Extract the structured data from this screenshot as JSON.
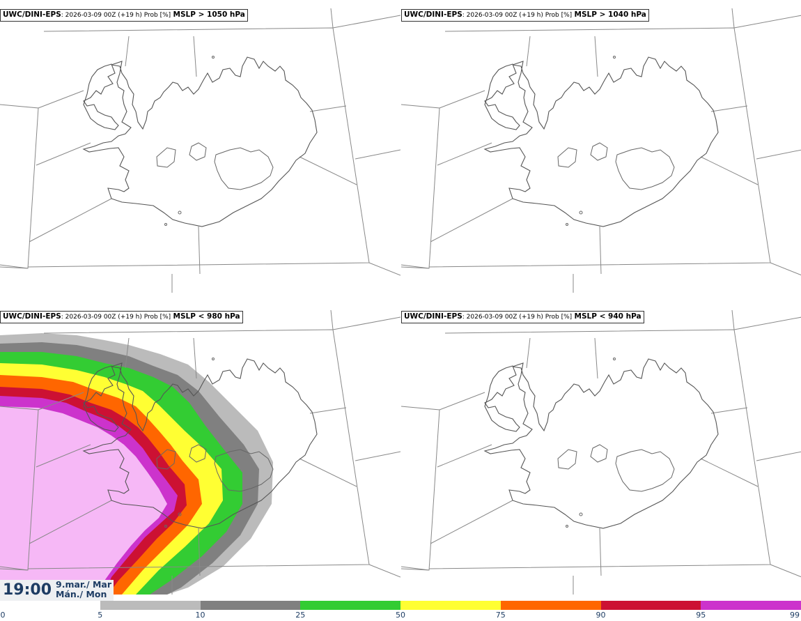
{
  "panels": [
    {
      "model": "UWC/DINI-EPS",
      "info": ": 2026-03-09 00Z (+19 h) Prob [%]",
      "field": "MSLP > 1050 hPa",
      "threshold_prob": "none"
    },
    {
      "model": "UWC/DINI-EPS",
      "info": ": 2026-03-09 00Z (+19 h) Prob [%]",
      "field": "MSLP > 1040 hPa",
      "threshold_prob": "none"
    },
    {
      "model": "UWC/DINI-EPS",
      "info": ": 2026-03-09 00Z (+19 h) Prob [%]",
      "field": "MSLP < 980 hPa",
      "threshold_prob": "high in west"
    },
    {
      "model": "UWC/DINI-EPS",
      "info": ": 2026-03-09 00Z (+19 h) Prob [%]",
      "field": "MSLP < 940 hPa",
      "threshold_prob": "none"
    }
  ],
  "time": {
    "clock": "19:00",
    "date_line1": "9.mar./ Mar",
    "date_line2": "Mán./ Mon"
  },
  "colorbar": {
    "ticks": [
      "0",
      "5",
      "10",
      "25",
      "50",
      "75",
      "90",
      "95",
      "99"
    ],
    "colors": [
      "#ffffff",
      "#bbbbbb",
      "#808080",
      "#33cc33",
      "#ffff33",
      "#ff6600",
      "#cc1133",
      "#cc33cc",
      "#f6b8f6"
    ]
  }
}
